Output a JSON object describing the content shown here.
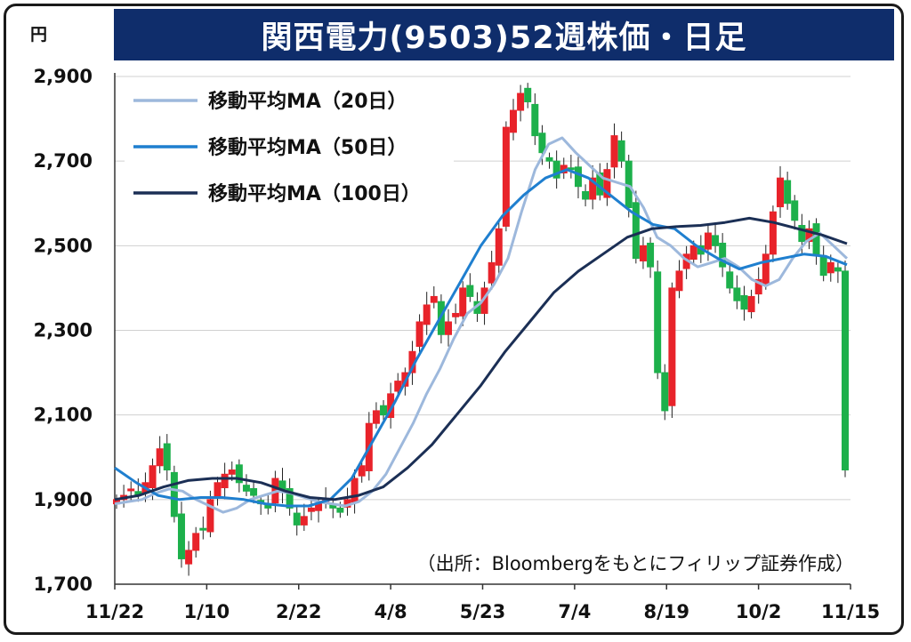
{
  "header": {
    "title": "関西電力(9503)52週株価・日足",
    "unit": "円"
  },
  "source_note": "（出所：Bloombergをもとにフィリップ証券作成）",
  "colors": {
    "title_bg": "#0f2d6b",
    "up": "#e8232a",
    "down": "#1db04b",
    "ma20": "#9db8dc",
    "ma50": "#1f7fcf",
    "ma100": "#1b2f55"
  },
  "chart_data": {
    "type": "candlestick",
    "ylim": [
      1700,
      2900
    ],
    "y_ticks": [
      "1,700",
      "1,900",
      "2,100",
      "2,300",
      "2,500",
      "2,700",
      "2,900"
    ],
    "y_tick_values": [
      1700,
      1900,
      2100,
      2300,
      2500,
      2700,
      2900
    ],
    "x_ticks": [
      "11/22",
      "1/10",
      "2/22",
      "4/8",
      "5/23",
      "7/4",
      "8/19",
      "10/2",
      "11/15"
    ],
    "grid": true,
    "legend_position": "top-left",
    "series": [
      {
        "name": "移動平均MA（20日）",
        "key": "ma20"
      },
      {
        "name": "移動平均MA（50日）",
        "key": "ma50"
      },
      {
        "name": "移動平均MA（100日）",
        "key": "ma100"
      }
    ],
    "close_approx": [
      1900,
      1910,
      1925,
      1910,
      1940,
      1980,
      2020,
      1970,
      1860,
      1760,
      1780,
      1820,
      1830,
      1900,
      1940,
      1960,
      1970,
      1940,
      1920,
      1910,
      1890,
      1880,
      1950,
      1920,
      1880,
      1840,
      1860,
      1880,
      1890,
      1900,
      1880,
      1870,
      1900,
      1950,
      1980,
      2080,
      2110,
      2100,
      2150,
      2180,
      2200,
      2250,
      2320,
      2360,
      2380,
      2290,
      2320,
      2340,
      2400,
      2380,
      2340,
      2400,
      2460,
      2540,
      2780,
      2820,
      2860,
      2840,
      2760,
      2720,
      2700,
      2660,
      2690,
      2680,
      2640,
      2610,
      2660,
      2620,
      2680,
      2760,
      2700,
      2590,
      2470,
      2500,
      2450,
      2200,
      2110,
      2400,
      2440,
      2480,
      2500,
      2480,
      2530,
      2500,
      2450,
      2400,
      2370,
      2350,
      2380,
      2420,
      2480,
      2580,
      2660,
      2600,
      2560,
      2510,
      2540,
      2480,
      2430,
      2460,
      2440,
      1970
    ],
    "ma20_approx": [
      1890,
      1895,
      1900,
      1915,
      1925,
      1920,
      1900,
      1885,
      1870,
      1880,
      1900,
      1910,
      1920,
      1915,
      1905,
      1895,
      1890,
      1885,
      1895,
      1920,
      1960,
      2020,
      2080,
      2150,
      2210,
      2280,
      2340,
      2365,
      2410,
      2470,
      2580,
      2680,
      2740,
      2755,
      2720,
      2690,
      2660,
      2650,
      2640,
      2590,
      2520,
      2500,
      2470,
      2450,
      2460,
      2470,
      2450,
      2420,
      2405,
      2420,
      2470,
      2510,
      2530,
      2500,
      2470
    ],
    "ma50_approx": [
      1975,
      1940,
      1910,
      1900,
      1905,
      1905,
      1900,
      1890,
      1885,
      1885,
      1900,
      1950,
      2040,
      2130,
      2230,
      2320,
      2410,
      2500,
      2570,
      2620,
      2660,
      2680,
      2660,
      2620,
      2580,
      2550,
      2540,
      2500,
      2470,
      2445,
      2460,
      2470,
      2480,
      2475,
      2455
    ],
    "ma100_approx": [
      1900,
      1910,
      1930,
      1945,
      1950,
      1950,
      1940,
      1920,
      1905,
      1900,
      1910,
      1930,
      1975,
      2030,
      2100,
      2170,
      2250,
      2320,
      2390,
      2440,
      2480,
      2520,
      2540,
      2545,
      2548,
      2555,
      2565,
      2555,
      2540,
      2525,
      2505
    ]
  }
}
